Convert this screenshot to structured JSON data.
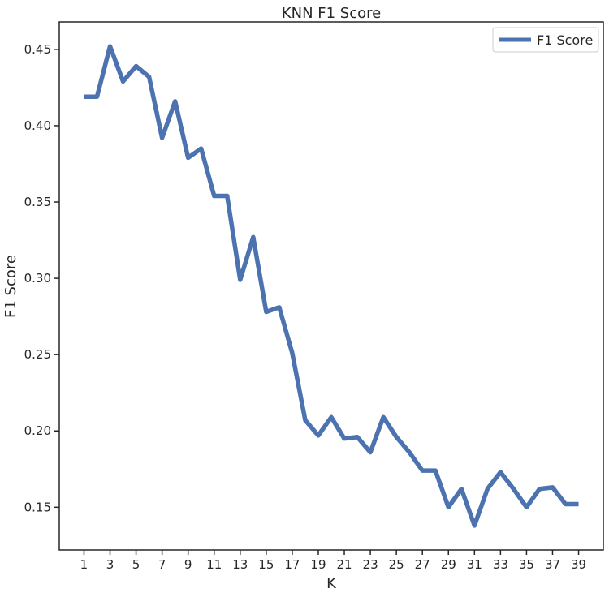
{
  "chart_data": {
    "type": "line",
    "title": "KNN F1 Score",
    "xlabel": "K",
    "ylabel": "F1 Score",
    "xlim": [
      -0.9,
      40.9
    ],
    "ylim": [
      0.122,
      0.468
    ],
    "x_ticks": [
      1,
      3,
      5,
      7,
      9,
      11,
      13,
      15,
      17,
      19,
      21,
      23,
      25,
      27,
      29,
      31,
      33,
      35,
      37,
      39
    ],
    "x_tick_labels": [
      "1",
      "3",
      "5",
      "7",
      "9",
      "11",
      "13",
      "15",
      "17",
      "19",
      "21",
      "23",
      "25",
      "27",
      "29",
      "31",
      "33",
      "35",
      "37",
      "39"
    ],
    "y_ticks": [
      0.15,
      0.2,
      0.25,
      0.3,
      0.35,
      0.4,
      0.45
    ],
    "y_tick_labels": [
      "0.15",
      "0.20",
      "0.25",
      "0.30",
      "0.35",
      "0.40",
      "0.45"
    ],
    "grid": false,
    "legend_position": "top-right",
    "series": [
      {
        "name": "F1 Score",
        "color": "#4c72b0",
        "x": [
          1,
          2,
          3,
          4,
          5,
          6,
          7,
          8,
          9,
          10,
          11,
          12,
          13,
          14,
          15,
          16,
          17,
          18,
          19,
          20,
          21,
          22,
          23,
          24,
          25,
          26,
          27,
          28,
          29,
          30,
          31,
          32,
          33,
          34,
          35,
          36,
          37,
          38,
          39
        ],
        "values": [
          0.419,
          0.419,
          0.452,
          0.429,
          0.439,
          0.432,
          0.392,
          0.416,
          0.379,
          0.385,
          0.354,
          0.354,
          0.299,
          0.327,
          0.278,
          0.281,
          0.251,
          0.207,
          0.197,
          0.209,
          0.195,
          0.196,
          0.186,
          0.209,
          0.196,
          0.186,
          0.174,
          0.174,
          0.15,
          0.162,
          0.138,
          0.162,
          0.173,
          0.162,
          0.15,
          0.162,
          0.163,
          0.152,
          0.152
        ]
      }
    ]
  }
}
